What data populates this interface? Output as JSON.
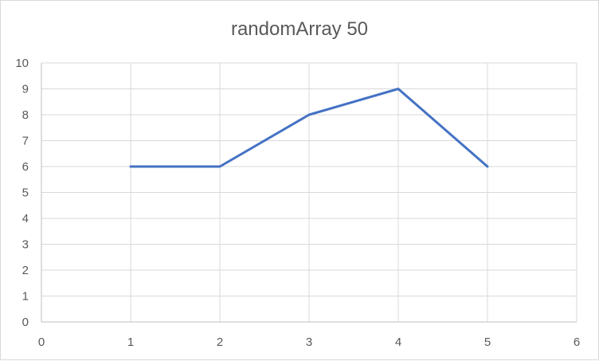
{
  "chart_data": {
    "type": "scatter",
    "title": "randomArray 50",
    "xlabel": "",
    "ylabel": "",
    "xlim": [
      0,
      6
    ],
    "ylim": [
      0,
      10
    ],
    "x_ticks": [
      "0",
      "1",
      "2",
      "3",
      "4",
      "5",
      "6"
    ],
    "y_ticks": [
      "0",
      "1",
      "2",
      "3",
      "4",
      "5",
      "6",
      "7",
      "8",
      "9",
      "10"
    ],
    "grid": true,
    "legend": "none",
    "series": [
      {
        "x": [
          1,
          2,
          3,
          4,
          5
        ],
        "y": [
          6,
          6,
          8,
          9,
          6
        ],
        "color": "#4472c4",
        "style": "straight lines, no markers"
      }
    ],
    "colors": {
      "line": "#4472c4",
      "grid": "#d9d9d9",
      "text": "#595959"
    }
  }
}
